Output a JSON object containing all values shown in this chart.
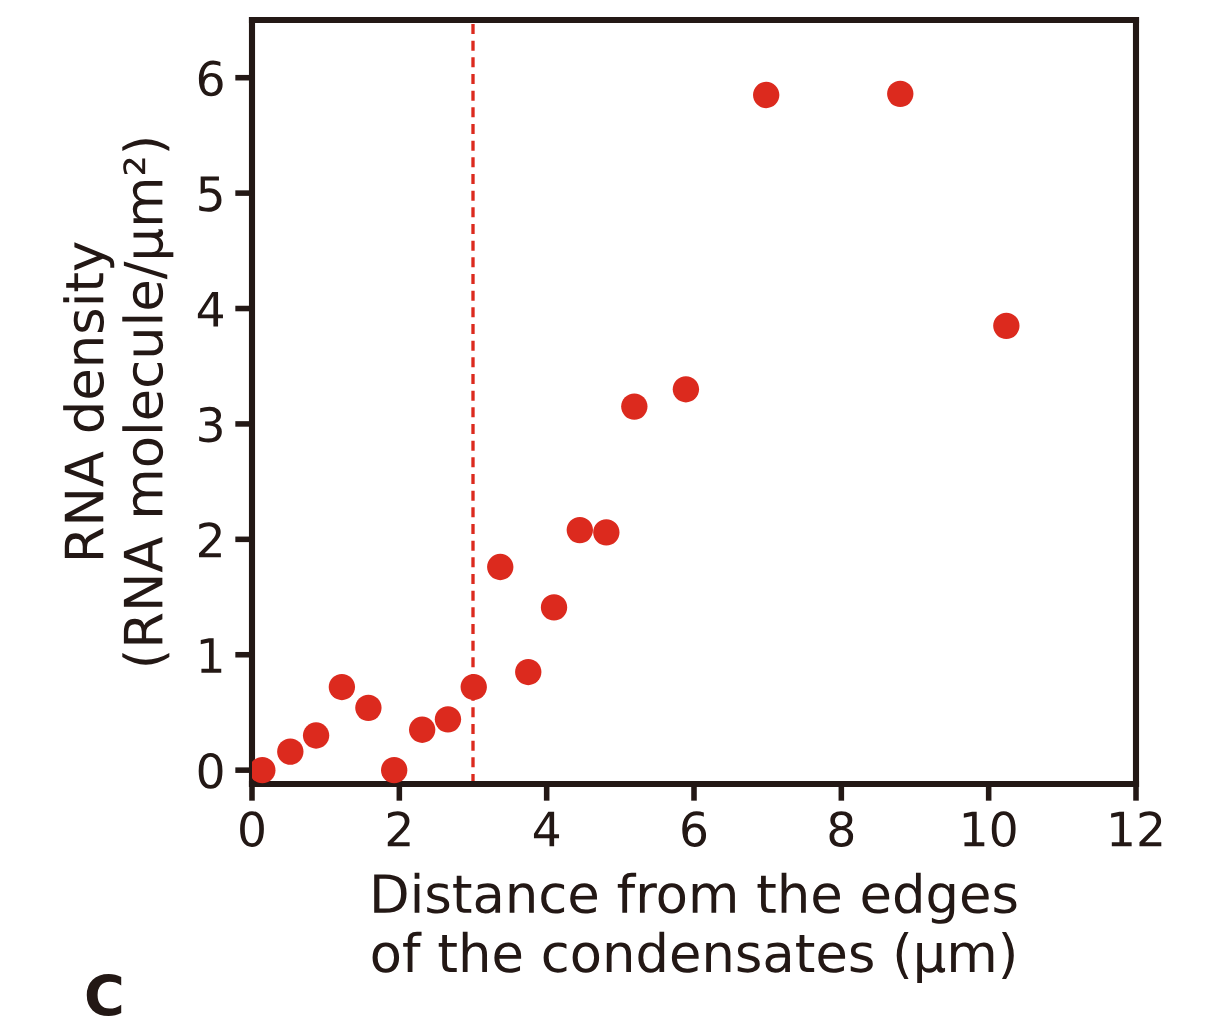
{
  "chart_data": {
    "type": "scatter",
    "xlabel": "Distance from the edges\nof the condensates (μm)",
    "ylabel": "RNA density\n(RNA molecule/μm²)",
    "x": [
      0.14,
      0.52,
      0.87,
      1.22,
      1.58,
      1.93,
      2.31,
      2.66,
      3.01,
      3.37,
      3.75,
      4.1,
      4.45,
      4.81,
      5.19,
      5.89,
      6.98,
      8.8,
      10.24
    ],
    "series": [
      {
        "color": "#dc2a1e",
        "values": [
          0,
          0.16,
          0.3,
          0.72,
          0.54,
          0,
          0.35,
          0.44,
          0.72,
          1.76,
          0.85,
          1.41,
          2.08,
          2.06,
          3.15,
          3.3,
          5.85,
          5.86,
          3.85
        ]
      }
    ],
    "marker": "circle",
    "xlim": [
      0,
      12
    ],
    "ylim": [
      -0.12,
      6.5
    ],
    "xticks": [
      0,
      2,
      4,
      6,
      8,
      10,
      12
    ],
    "yticks": [
      0,
      1,
      2,
      3,
      4,
      5,
      6
    ],
    "ref_lines": [
      {
        "axis": "x",
        "value": 3,
        "color": "#dc2a1e",
        "line_style": "dashed"
      }
    ],
    "annotations": [
      "C"
    ],
    "grid": false
  }
}
